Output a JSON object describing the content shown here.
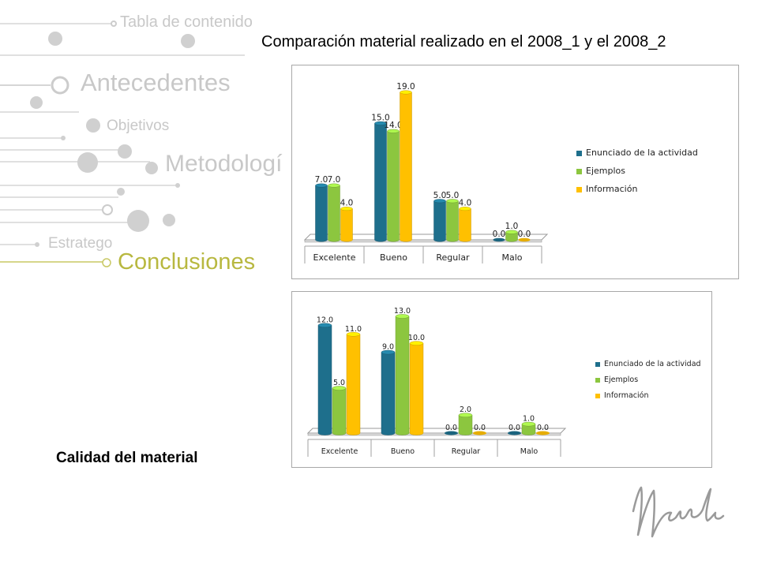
{
  "nav": {
    "items": [
      {
        "label": "Tabla de contenido",
        "active": false
      },
      {
        "label": "Antecedentes",
        "active": false
      },
      {
        "label": "Objetivos",
        "active": false
      },
      {
        "label": "Metodologí",
        "active": false
      },
      {
        "label": "Estratego",
        "active": false
      },
      {
        "label": "Conclusiones",
        "active": true
      }
    ]
  },
  "title": "Comparación material realizado en el 2008_1 y el 2008_2",
  "caption": "Calidad del material",
  "colors": {
    "series": [
      "#1e6f8c",
      "#8cc63f",
      "#ffc000"
    ],
    "nav_inactive": "#c8c8c8",
    "nav_active": "#b8b840"
  },
  "chart_data": [
    {
      "type": "bar",
      "categories": [
        "Excelente",
        "Bueno",
        "Regular",
        "Malo"
      ],
      "series": [
        {
          "name": "Enunciado de la actividad",
          "values": [
            7.0,
            15.0,
            5.0,
            0.0
          ]
        },
        {
          "name": "Ejemplos",
          "values": [
            7.0,
            14.0,
            5.0,
            1.0
          ]
        },
        {
          "name": "Información",
          "values": [
            4.0,
            19.0,
            4.0,
            0.0
          ]
        }
      ],
      "ylim": [
        0,
        19
      ],
      "data_labels": true,
      "legend": "right"
    },
    {
      "type": "bar",
      "categories": [
        "Excelente",
        "Bueno",
        "Regular",
        "Malo"
      ],
      "series": [
        {
          "name": "Enunciado de la actividad",
          "values": [
            12.0,
            9.0,
            0.0,
            0.0
          ]
        },
        {
          "name": "Ejemplos",
          "values": [
            5.0,
            13.0,
            2.0,
            1.0
          ]
        },
        {
          "name": "Información",
          "values": [
            11.0,
            10.0,
            0.0,
            0.0
          ]
        }
      ],
      "ylim": [
        0,
        13
      ],
      "data_labels": true,
      "legend": "right"
    }
  ]
}
